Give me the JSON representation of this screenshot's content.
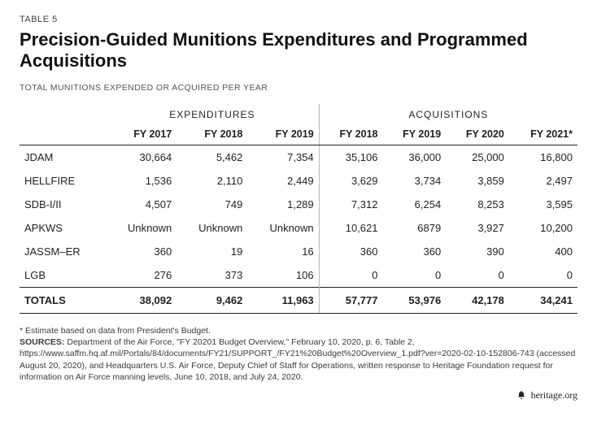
{
  "header": {
    "table_number": "TABLE 5",
    "title": "Precision-Guided Munitions Expenditures and Programmed Acquisitions",
    "subtitle": "TOTAL MUNITIONS EXPENDED OR ACQUIRED PER YEAR"
  },
  "table": {
    "group_headers": [
      "EXPENDITURES",
      "ACQUISITIONS"
    ],
    "year_headers": [
      "FY 2017",
      "FY 2018",
      "FY 2019",
      "FY 2018",
      "FY 2019",
      "FY 2020",
      "FY 2021*"
    ],
    "rows": [
      {
        "label": "JDAM",
        "cells": [
          "30,664",
          "5,462",
          "7,354",
          "35,106",
          "36,000",
          "25,000",
          "16,800"
        ]
      },
      {
        "label": "HELLFIRE",
        "cells": [
          "1,536",
          "2,110",
          "2,449",
          "3,629",
          "3,734",
          "3,859",
          "2,497"
        ]
      },
      {
        "label": "SDB-I/II",
        "cells": [
          "4,507",
          "749",
          "1,289",
          "7,312",
          "6,254",
          "8,253",
          "3,595"
        ]
      },
      {
        "label": "APKWS",
        "cells": [
          "Unknown",
          "Unknown",
          "Unknown",
          "10,621",
          "6879",
          "3,927",
          "10,200"
        ]
      },
      {
        "label": "JASSM–ER",
        "cells": [
          "360",
          "19",
          "16",
          "360",
          "360",
          "390",
          "400"
        ]
      },
      {
        "label": "LGB",
        "cells": [
          "276",
          "373",
          "106",
          "0",
          "0",
          "0",
          "0"
        ]
      }
    ],
    "totals": {
      "label": "TOTALS",
      "cells": [
        "38,092",
        "9,462",
        "11,963",
        "57,777",
        "53,976",
        "42,178",
        "34,241"
      ]
    }
  },
  "footnote": {
    "estimate": "* Estimate based on data from President's Budget.",
    "sources_label": "SOURCES:",
    "sources_text": "Department of the Air Force, \"FY 20201 Budget Overview,\" February 10, 2020, p. 6, Table 2, https://www.saffm.hq.af.mil/Portals/84/documents/FY21/SUPPORT_/FY21%20Budget%20Overview_1.pdf?ver=2020-02-10-152806-743 (accessed August 20, 2020), and Headquarters U.S. Air Force, Deputy Chief of Staff for Operations, written response to Heritage Foundation request for information on Air Force manning levels, June 10, 2018, and July 24, 2020."
  },
  "brand": {
    "text": "heritage.org"
  }
}
